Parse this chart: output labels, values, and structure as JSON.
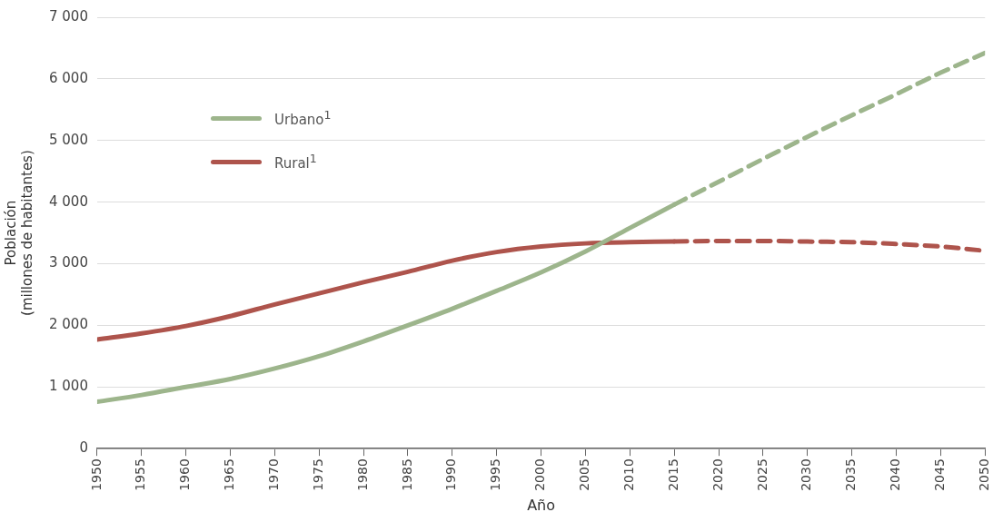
{
  "chart_data": {
    "type": "line",
    "xlabel": "Año",
    "ylabel": "Población\n(millones de habitantes)",
    "xlim": [
      1950,
      2050
    ],
    "xticks": [
      1950,
      1955,
      1960,
      1965,
      1970,
      1975,
      1980,
      1985,
      1990,
      1995,
      2000,
      2005,
      2010,
      2015,
      2020,
      2025,
      2030,
      2035,
      2040,
      2045,
      2050
    ],
    "ylim": [
      0,
      7000
    ],
    "yticks": [
      0,
      {
        "value": 1000,
        "label": "1 000"
      },
      {
        "value": 2000,
        "label": "2 000"
      },
      {
        "value": 3000,
        "label": "3 000"
      },
      {
        "value": 4000,
        "label": "4 000"
      },
      {
        "value": 5000,
        "label": "5 000"
      },
      {
        "value": 6000,
        "label": "6 000"
      },
      {
        "value": 7000,
        "label": "7 000"
      }
    ],
    "grid": "y",
    "legend": "top left",
    "marker": "none",
    "series": [
      {
        "name": "Urbano$^{1}$",
        "color": "#9db58c",
        "line_style": "solid",
        "x": [
          1950,
          1955,
          1960,
          1965,
          1970,
          1975,
          1980,
          1985,
          1990,
          1995,
          2000,
          2005,
          2010,
          2015
        ],
        "values": [
          760,
          870,
          1000,
          1130,
          1300,
          1500,
          1740,
          2000,
          2270,
          2560,
          2860,
          3200,
          3580,
          3960
        ]
      },
      {
        "name": "Rural$^{1}$",
        "color": "#ae544c",
        "line_style": "solid",
        "x": [
          1950,
          1955,
          1960,
          1965,
          1970,
          1975,
          1980,
          1985,
          1990,
          1995,
          2000,
          2005,
          2010,
          2015
        ],
        "values": [
          1770,
          1870,
          1990,
          2150,
          2340,
          2520,
          2700,
          2870,
          3050,
          3190,
          3280,
          3330,
          3350,
          3360
        ]
      },
      {
        "color": "#9db58c",
        "line_style": "dashed",
        "x": [
          2015,
          2020,
          2025,
          2030,
          2035,
          2040,
          2045,
          2050
        ],
        "values": [
          3960,
          4330,
          4700,
          5060,
          5410,
          5750,
          6100,
          6420
        ]
      },
      {
        "color": "#ae544c",
        "line_style": "dashed",
        "x": [
          2015,
          2020,
          2025,
          2030,
          2035,
          2040,
          2045,
          2050
        ],
        "values": [
          3360,
          3370,
          3370,
          3360,
          3350,
          3320,
          3280,
          3210
        ]
      }
    ]
  }
}
